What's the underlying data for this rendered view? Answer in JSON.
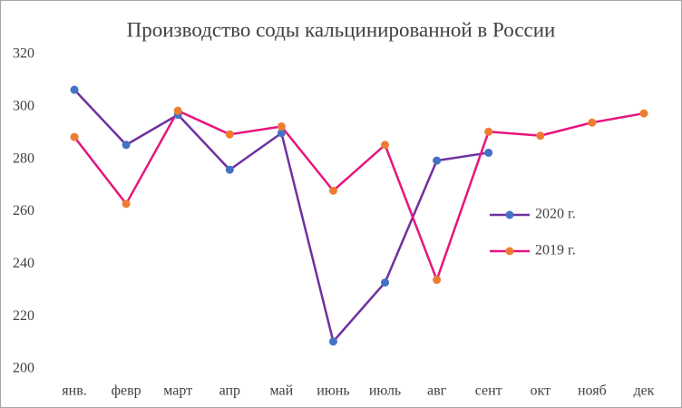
{
  "chart_data": {
    "type": "line",
    "title": "Производство соды кальцинированной в России",
    "categories": [
      "янв.",
      "февр",
      "март",
      "апр",
      "май",
      "июнь",
      "июль",
      "авг",
      "сент",
      "окт",
      "нояб",
      "дек"
    ],
    "series": [
      {
        "name": "2020 г.",
        "color": "#7030a0",
        "marker_color": "#4472c4",
        "values": [
          306.5,
          285.5,
          297,
          276,
          290,
          210.5,
          233,
          279.5,
          282.5,
          null,
          null,
          null
        ]
      },
      {
        "name": "2019 г.",
        "color": "#e6157e",
        "marker_color": "#ed7d31",
        "values": [
          288.5,
          263,
          298.5,
          289.5,
          292.5,
          268,
          285.5,
          234,
          290.5,
          289,
          294,
          297.5
        ]
      }
    ],
    "ylim": [
      200,
      320
    ],
    "yticks": [
      200,
      220,
      240,
      260,
      280,
      300,
      320
    ],
    "grid": false,
    "legend": "right"
  }
}
